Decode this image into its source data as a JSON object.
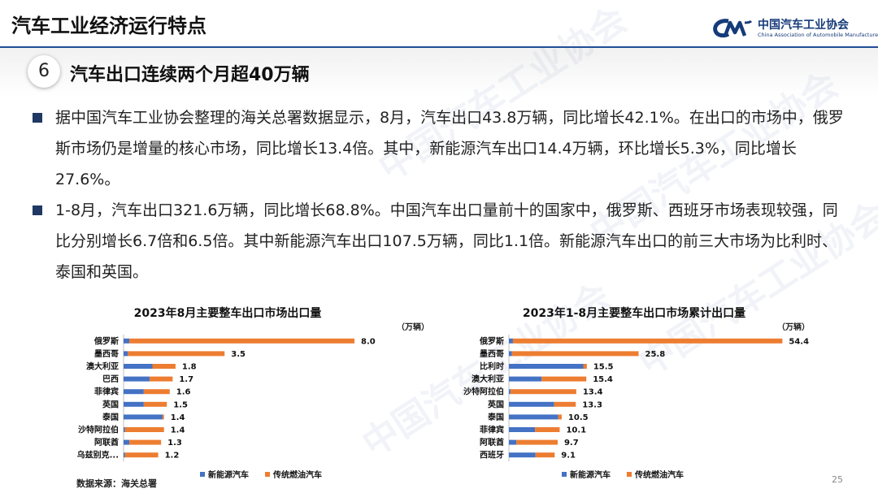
{
  "header": {
    "title": "汽车工业经济运行特点",
    "logo_cn": "中国汽车工业协会",
    "logo_en": "China Association of Automobile Manufacturers",
    "brand_color": "#1f4e96"
  },
  "section": {
    "number": "6",
    "title": "汽车出口连续两个月超40万辆"
  },
  "bullets": [
    "据中国汽车工业协会整理的海关总署数据显示，8月，汽车出口43.8万辆，同比增长42.1%。在出口的市场中，俄罗斯市场仍是增量的核心市场，同比增长13.4倍。其中，新能源汽车出口14.4万辆，环比增长5.3%，同比增长27.6%。",
    "1-8月，汽车出口321.6万辆，同比增长68.8%。中国汽车出口量前十的国家中，俄罗斯、西班牙市场表现较强，同比分别增长6.7倍和6.5倍。其中新能源汽车出口107.5万辆，同比1.1倍。新能源汽车出口的前三大市场为比利时、泰国和英国。"
  ],
  "watermark_text": "中国汽车工业协会",
  "source_note": "数据来源：海关总署",
  "page_number": "25",
  "colors": {
    "nev": "#4472c4",
    "ice": "#ed7d31",
    "bullet": "#1f3864"
  },
  "chart_data": [
    {
      "type": "bar",
      "orientation": "horizontal",
      "stacked": true,
      "title": "2023年8月主要整车出口市场出口量",
      "unit": "（万辆）",
      "categories": [
        "俄罗斯",
        "墨西哥",
        "澳大利亚",
        "巴西",
        "菲律宾",
        "英国",
        "泰国",
        "沙特阿拉伯",
        "阿联酋",
        "乌兹别克..."
      ],
      "series": [
        {
          "name": "新能源汽车",
          "color": "#4472c4",
          "values": [
            0.2,
            0.15,
            1.0,
            0.9,
            0.7,
            0.7,
            1.35,
            0.05,
            0.2,
            0.05
          ]
        },
        {
          "name": "传统燃油汽车",
          "color": "#ed7d31",
          "values": [
            7.8,
            3.35,
            0.8,
            0.8,
            0.9,
            0.8,
            0.05,
            1.35,
            1.1,
            1.15
          ]
        }
      ],
      "totals": [
        "8.0",
        "3.5",
        "1.8",
        "1.7",
        "1.6",
        "1.5",
        "1.4",
        "1.4",
        "1.3",
        "1.2"
      ],
      "xlim": [
        0,
        10
      ],
      "legend": "bottom"
    },
    {
      "type": "bar",
      "orientation": "horizontal",
      "stacked": true,
      "title": "2023年1-8月主要整车出口市场累计出口量",
      "unit": "（万辆）",
      "categories": [
        "俄罗斯",
        "墨西哥",
        "比利时",
        "澳大利亚",
        "沙特阿拉伯",
        "英国",
        "泰国",
        "菲律宾",
        "阿联酋",
        "西班牙"
      ],
      "series": [
        {
          "name": "新能源汽车",
          "color": "#4472c4",
          "values": [
            0.8,
            0.6,
            14.8,
            6.5,
            0.3,
            9.0,
            9.8,
            5.2,
            1.5,
            5.3
          ]
        },
        {
          "name": "传统燃油汽车",
          "color": "#ed7d31",
          "values": [
            53.6,
            25.2,
            0.7,
            8.9,
            13.1,
            4.3,
            0.7,
            4.9,
            8.2,
            3.8
          ]
        }
      ],
      "totals": [
        "54.4",
        "25.8",
        "15.5",
        "15.4",
        "13.4",
        "13.3",
        "10.5",
        "10.1",
        "9.7",
        "9.1"
      ],
      "xlim": [
        0,
        60
      ],
      "legend": "bottom"
    }
  ]
}
